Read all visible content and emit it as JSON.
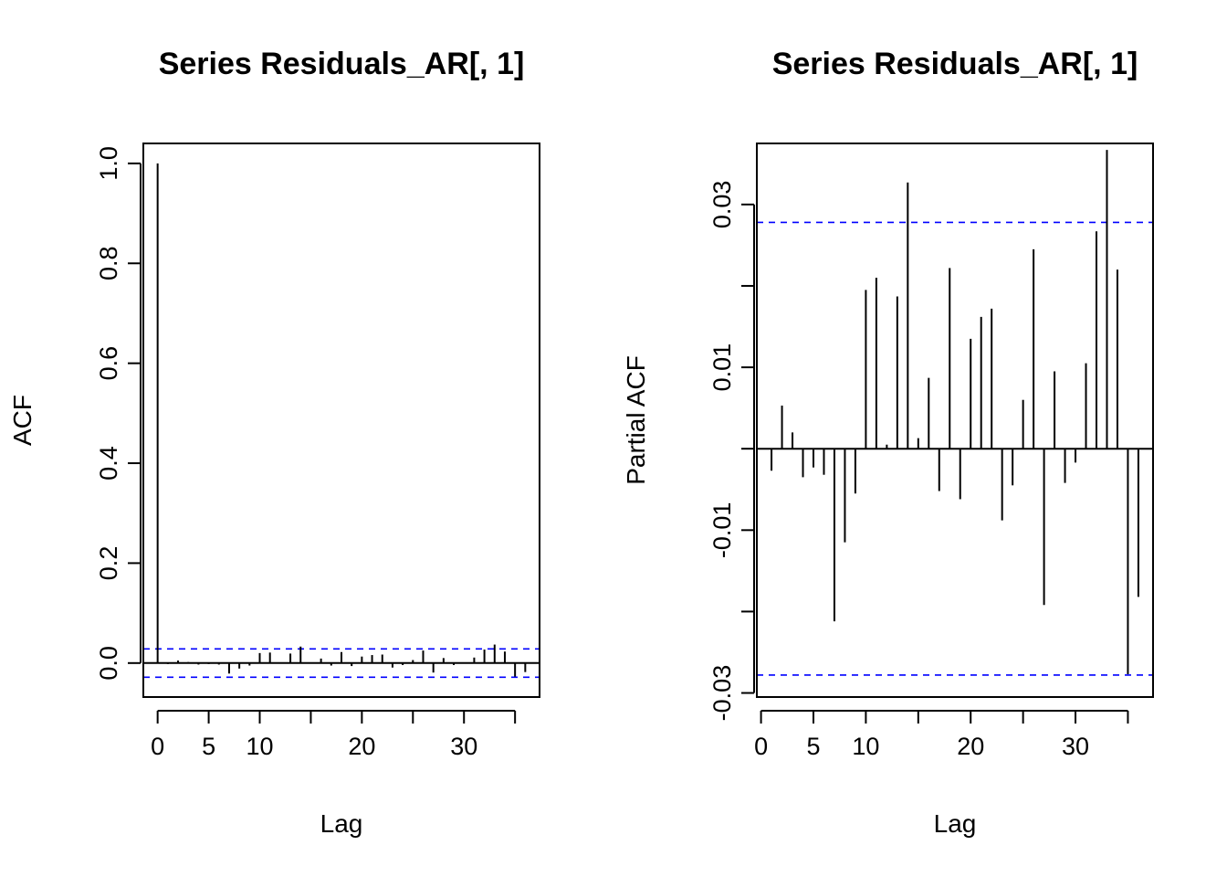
{
  "chart_data": [
    {
      "type": "bar",
      "title": "Series  Residuals_AR[, 1]",
      "xlabel": "Lag",
      "ylabel": "ACF",
      "xlim": [
        -1.4,
        37.4
      ],
      "ylim": [
        -0.068,
        1.04
      ],
      "x_ticks": [
        0,
        5,
        10,
        20,
        30
      ],
      "y_ticks": [
        0.0,
        0.2,
        0.4,
        0.6,
        0.8,
        1.0
      ],
      "y_tick_labels": [
        "0.0",
        "0.2",
        "0.4",
        "0.6",
        "0.8",
        "1.0"
      ],
      "confidence_bound": 0.0283,
      "grid": false,
      "lags": [
        0,
        1,
        2,
        3,
        4,
        5,
        6,
        7,
        8,
        9,
        10,
        11,
        12,
        13,
        14,
        15,
        16,
        17,
        18,
        19,
        20,
        21,
        22,
        23,
        24,
        25,
        26,
        27,
        28,
        29,
        30,
        31,
        32,
        33,
        34,
        35,
        36
      ],
      "values": [
        1.0,
        -0.002,
        0.005,
        0.002,
        -0.003,
        -0.002,
        -0.003,
        -0.021,
        -0.011,
        -0.005,
        0.02,
        0.021,
        0.0,
        0.019,
        0.033,
        0.001,
        0.009,
        -0.005,
        0.022,
        -0.006,
        0.013,
        0.016,
        0.017,
        -0.009,
        -0.004,
        0.006,
        0.025,
        -0.019,
        0.01,
        -0.004,
        -0.001,
        0.011,
        0.027,
        0.037,
        0.023,
        -0.027,
        -0.018
      ]
    },
    {
      "type": "bar",
      "title": "Series  Residuals_AR[, 1]",
      "xlabel": "Lag",
      "ylabel": "Partial ACF",
      "xlim": [
        -0.4,
        37.4
      ],
      "ylim": [
        -0.0305,
        0.0375
      ],
      "x_ticks": [
        0,
        5,
        10,
        20,
        30
      ],
      "y_ticks": [
        -0.03,
        -0.02,
        -0.01,
        0.0,
        0.01,
        0.02,
        0.03
      ],
      "y_tick_labels": [
        "-0.03",
        "",
        "-0.01",
        "",
        "0.01",
        "",
        "0.03"
      ],
      "confidence_bound": 0.0278,
      "grid": false,
      "lags": [
        1,
        2,
        3,
        4,
        5,
        6,
        7,
        8,
        9,
        10,
        11,
        12,
        13,
        14,
        15,
        16,
        17,
        18,
        19,
        20,
        21,
        22,
        23,
        24,
        25,
        26,
        27,
        28,
        29,
        30,
        31,
        32,
        33,
        34,
        35,
        36
      ],
      "values": [
        -0.0027,
        0.0053,
        0.002,
        -0.0035,
        -0.0023,
        -0.0032,
        -0.0212,
        -0.0115,
        -0.0055,
        0.0195,
        0.021,
        0.0005,
        0.0187,
        0.0327,
        0.0013,
        0.0087,
        -0.0052,
        0.0222,
        -0.0062,
        0.0135,
        0.0162,
        0.0172,
        -0.0088,
        -0.0045,
        0.006,
        0.0245,
        -0.0192,
        0.0095,
        -0.0042,
        -0.0017,
        0.0105,
        0.0267,
        0.0367,
        0.022,
        -0.0277,
        -0.0182
      ]
    }
  ]
}
